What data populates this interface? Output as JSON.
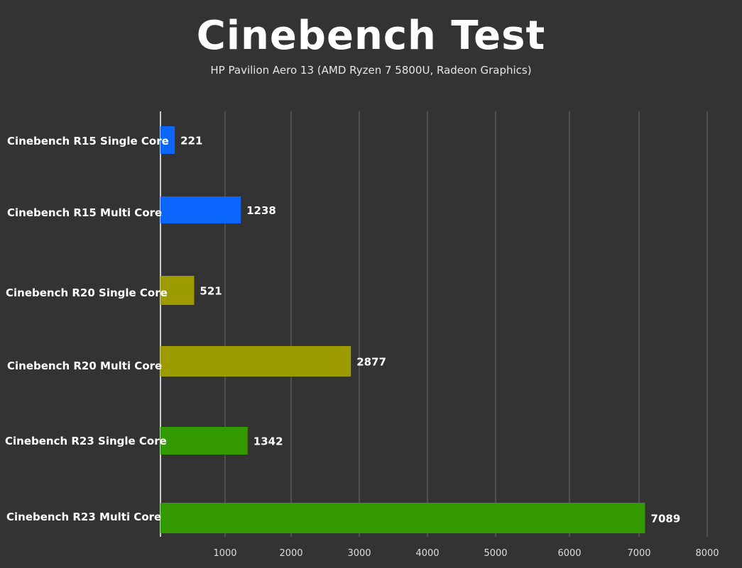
{
  "chart_data": {
    "type": "bar",
    "orientation": "horizontal",
    "title": "Cinebench Test",
    "subtitle": "HP Pavilion Aero 13 (AMD Ryzen 7 5800U, Radeon Graphics)",
    "categories": [
      "Cinebench R15 Single Core",
      "Cinebench R15 Multi Core",
      "Cinebench R20 Single Core",
      "Cinebench R20 Multi Core",
      "Cinebench R23 Single Core",
      "Cinebench R23 Multi Core"
    ],
    "values": [
      221,
      1238,
      521,
      2877,
      1342,
      7089
    ],
    "bar_colors": [
      "#0a66ff",
      "#0a66ff",
      "#9c9c00",
      "#9c9c00",
      "#339900",
      "#339900"
    ],
    "xticks": [
      1000,
      2000,
      3000,
      4000,
      5000,
      6000,
      7000,
      8000
    ],
    "xlim": [
      0,
      8000
    ],
    "grid": true,
    "legend": "none"
  }
}
